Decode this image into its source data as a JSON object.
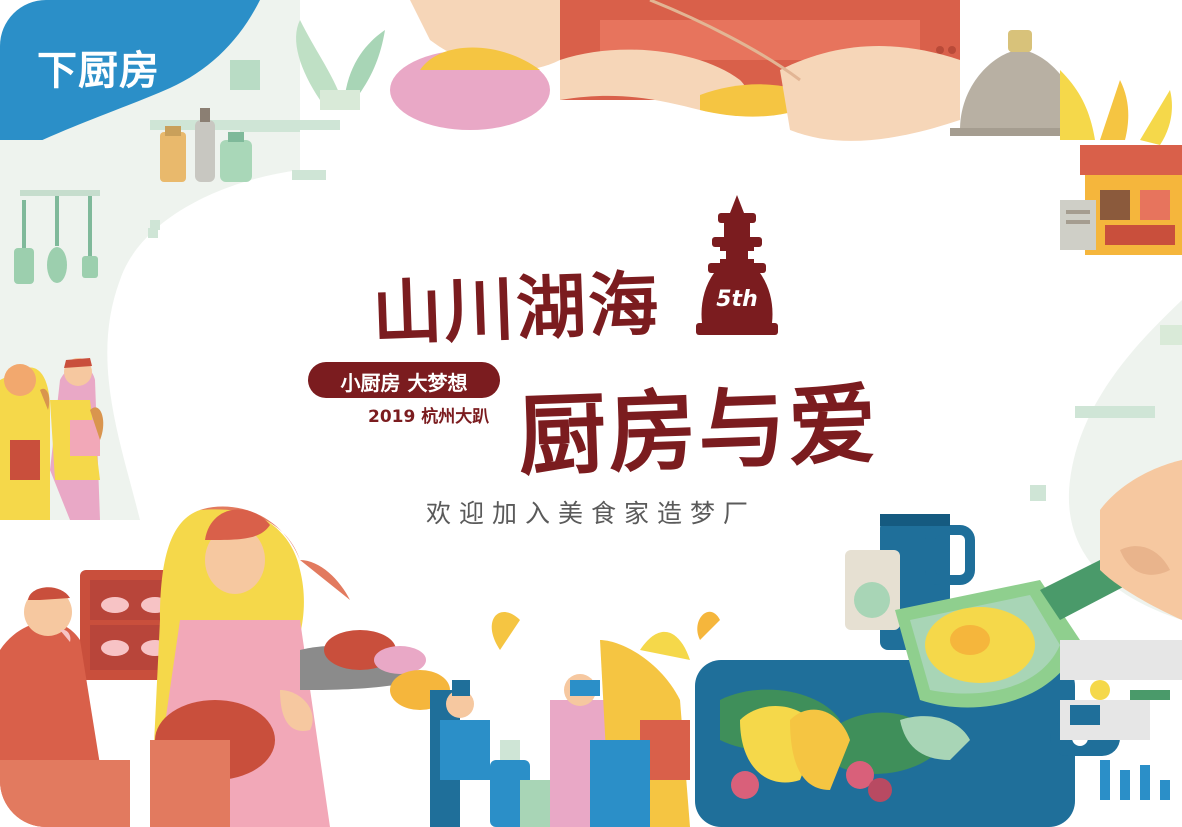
{
  "brand": {
    "name": "下厨房"
  },
  "event": {
    "title_line1": "山川湖海",
    "title_line2": "厨房与爱",
    "edition": "5th",
    "slogan": "小厨房 大梦想",
    "date_location": "2019 杭州大趴"
  },
  "welcome_text": "欢迎加入美食家造梦厂",
  "colors": {
    "brand_blue": "#2b8fc8",
    "title_maroon": "#7b1c1f",
    "accent_yellow": "#f5d84a",
    "accent_coral": "#e27a5f",
    "accent_green": "#a8d5b6",
    "accent_pink": "#f2a8b8",
    "pan_green": "#8fcf8e",
    "board_blue": "#1f6f9a"
  },
  "illustrations": [
    "hands-with-dumplings-illustration",
    "kitchen-shelf-illustration",
    "market-stall-illustration",
    "shopping-women-illustration",
    "baker-woman-illustration",
    "chefs-illustration",
    "frying-pan-egg-illustration",
    "cutting-board-vegetables-illustration"
  ]
}
